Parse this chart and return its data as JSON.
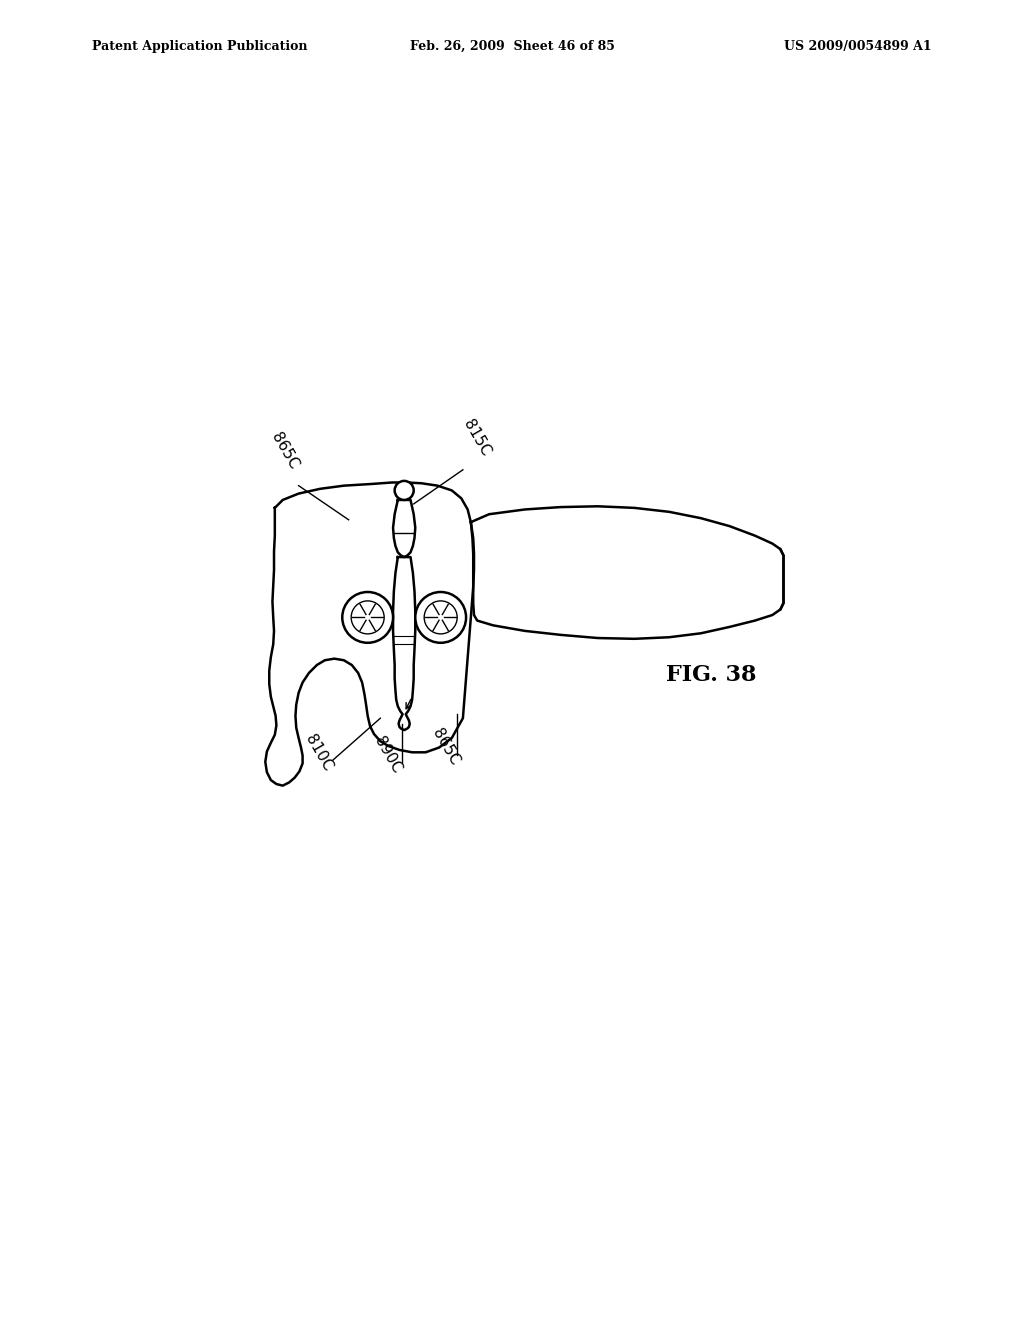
{
  "bg_color": "#ffffff",
  "line_color": "#000000",
  "header_left": "Patent Application Publication",
  "header_mid": "Feb. 26, 2009  Sheet 46 of 85",
  "header_right": "US 2009/0054899 A1",
  "fig_label": "FIG. 38",
  "label_fontsize": 11,
  "header_fontsize": 9,
  "fig_fontsize": 16
}
